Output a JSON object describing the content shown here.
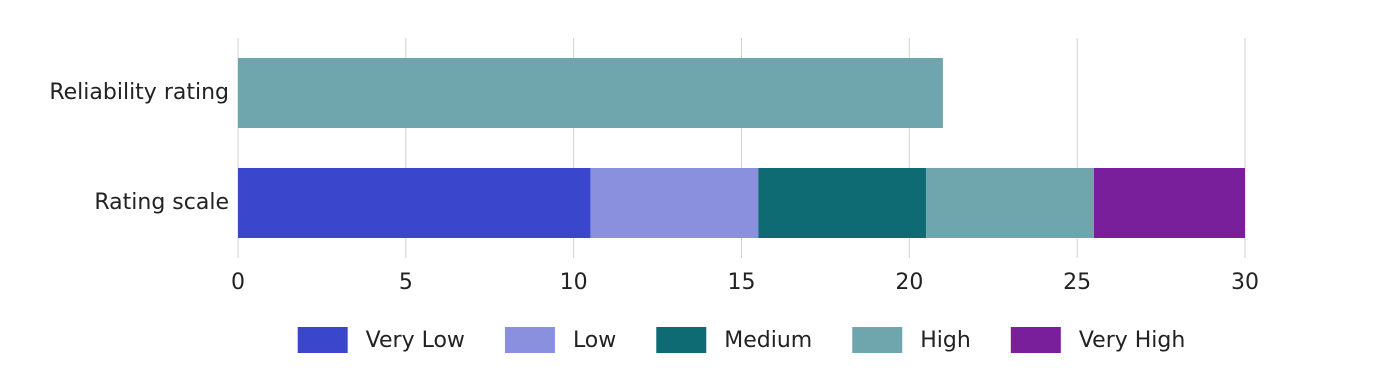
{
  "chart_data": {
    "type": "stacked-bar-horizontal",
    "categories": [
      "Reliability rating",
      "Rating scale"
    ],
    "series": [
      {
        "name": "Very Low",
        "color": "#3a46cc",
        "values": [
          null,
          10.5
        ]
      },
      {
        "name": "Low",
        "color": "#8a90de",
        "values": [
          null,
          5
        ]
      },
      {
        "name": "Medium",
        "color": "#0f6b73",
        "values": [
          null,
          5
        ]
      },
      {
        "name": "High",
        "color": "#6fa5ad",
        "values": [
          21,
          5
        ]
      },
      {
        "name": "Very High",
        "color": "#7a1f9c",
        "values": [
          null,
          4.5
        ]
      }
    ],
    "xlim": [
      0,
      30
    ],
    "xticks": [
      0,
      5,
      10,
      15,
      20,
      25,
      30
    ],
    "grid": true,
    "legend": "bottom"
  }
}
